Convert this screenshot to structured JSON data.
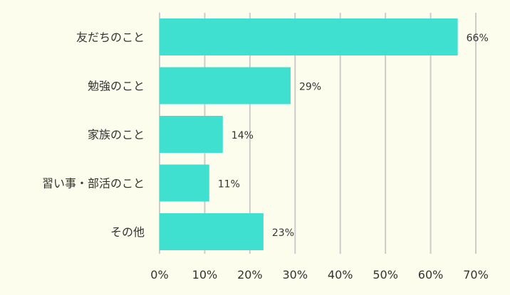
{
  "chart_data": {
    "type": "bar",
    "orientation": "horizontal",
    "title": "",
    "xlabel": "",
    "ylabel": "",
    "categories": [
      "友だちのこと",
      "勉強のこと",
      "家族のこと",
      "習い事・部活のこと",
      "その他"
    ],
    "values": [
      66,
      29,
      14,
      11,
      23
    ],
    "data_labels": [
      "66%",
      "29%",
      "14%",
      "11%",
      "23%"
    ],
    "xlim": [
      0,
      70
    ],
    "x_ticks": [
      0,
      10,
      20,
      30,
      40,
      50,
      60,
      70
    ],
    "x_tick_labels": [
      "0%",
      "10%",
      "20%",
      "30%",
      "40%",
      "50%",
      "60%",
      "70%"
    ],
    "grid": "vertical",
    "legend": "none",
    "colors": {
      "bar": "#40e0d0",
      "grid": "#cccccc",
      "background": "#fdfdee",
      "text": "#333333"
    }
  }
}
